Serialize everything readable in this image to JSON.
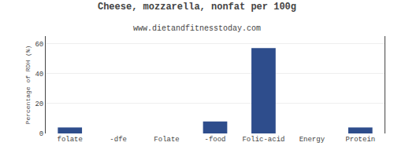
{
  "chart_data": {
    "type": "bar",
    "title": "Cheese, mozzarella, nonfat per 100g",
    "subtitle": "www.dietandfitnesstoday.com",
    "categories": [
      "folate",
      "-dfe",
      "Folate",
      "-food",
      "Folic-acid",
      "Energy",
      "Protein"
    ],
    "values": [
      4.0,
      0.0,
      0.0,
      8.0,
      57.0,
      0.0,
      4.0
    ],
    "color": "#2e4d8c",
    "ylabel": "Percentage of RDH (%)",
    "ylim": [
      0,
      65
    ],
    "yticks": [
      0,
      20,
      40,
      60
    ],
    "grid": true
  }
}
